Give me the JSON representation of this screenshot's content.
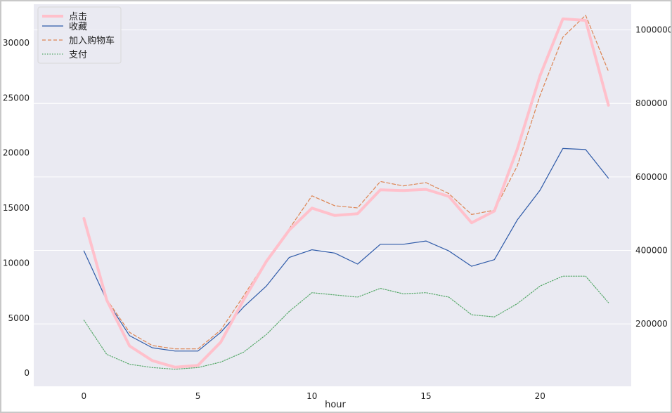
{
  "chart_data": {
    "type": "line",
    "xlabel": "hour",
    "x": [
      0,
      1,
      2,
      3,
      4,
      5,
      6,
      7,
      8,
      9,
      10,
      11,
      12,
      13,
      14,
      15,
      16,
      17,
      18,
      19,
      20,
      21,
      22,
      23
    ],
    "xticks": [
      0,
      5,
      10,
      15,
      20
    ],
    "xlim": [
      -2.2,
      24.0
    ],
    "y_left": {
      "ylim": [
        -1200,
        33500
      ],
      "ticks": [
        0,
        5000,
        10000,
        15000,
        20000,
        25000,
        30000
      ]
    },
    "y_right": {
      "ylim": [
        30000,
        1070000
      ],
      "ticks": [
        200000,
        400000,
        600000,
        800000,
        1000000
      ]
    },
    "series": [
      {
        "name": "点击",
        "axis": "right",
        "color": "#ffc0cb",
        "dash": "",
        "width": 4,
        "values": [
          487000,
          265000,
          140000,
          100000,
          82000,
          87000,
          150000,
          265000,
          370000,
          455000,
          515000,
          495000,
          500000,
          565000,
          563000,
          566000,
          547000,
          475000,
          507000,
          675000,
          875000,
          1030000,
          1026000,
          795000
        ]
      },
      {
        "name": "收藏",
        "axis": "left",
        "color": "#2e5aa8",
        "dash": "",
        "width": 1.2,
        "values": [
          11100,
          6600,
          3400,
          2300,
          2000,
          2000,
          3700,
          6000,
          7900,
          10500,
          11200,
          10900,
          9900,
          11700,
          11700,
          12000,
          11100,
          9700,
          10300,
          13900,
          16600,
          20400,
          20300,
          17700
        ]
      },
      {
        "name": "加入购物车",
        "axis": "left",
        "color": "#dd8452",
        "dash": "5,3",
        "width": 1.2,
        "values": [
          14100,
          6700,
          3700,
          2500,
          2200,
          2200,
          3900,
          7000,
          10200,
          13100,
          16100,
          15200,
          15000,
          17400,
          17000,
          17300,
          16300,
          14400,
          14800,
          18800,
          25200,
          30500,
          32500,
          27400
        ]
      },
      {
        "name": "支付",
        "axis": "left",
        "color": "#55a868",
        "dash": "1.5,2",
        "width": 1.2,
        "values": [
          4800,
          1700,
          800,
          500,
          350,
          500,
          1000,
          1900,
          3500,
          5600,
          7300,
          7100,
          6900,
          7700,
          7200,
          7300,
          6900,
          5300,
          5100,
          6300,
          7900,
          8800,
          8800,
          6400
        ]
      }
    ],
    "legend": {
      "placement": "top-left",
      "entries": [
        "点击",
        "收藏",
        "加入购物车",
        "支付"
      ]
    },
    "grid": true
  }
}
